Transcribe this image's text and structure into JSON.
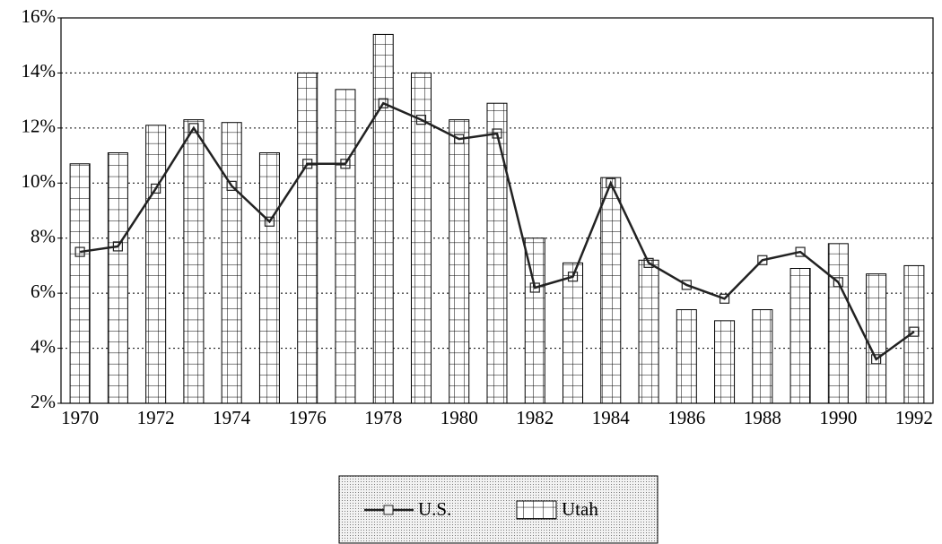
{
  "chart_data": {
    "type": "bar",
    "categories": [
      "1970",
      null,
      "1972",
      null,
      "1974",
      null,
      "1976",
      null,
      "1978",
      null,
      "1980",
      null,
      "1982",
      null,
      "1984",
      null,
      "1986",
      null,
      "1988",
      null,
      "1990",
      null,
      "1992"
    ],
    "series": [
      {
        "name": "U.S.",
        "type": "line",
        "color": "#222222",
        "values": [
          7.5,
          7.7,
          9.8,
          12.0,
          9.9,
          8.6,
          10.7,
          10.7,
          12.9,
          12.3,
          11.6,
          11.8,
          6.2,
          6.6,
          10.0,
          7.1,
          6.3,
          5.8,
          7.2,
          7.5,
          6.4,
          3.6,
          4.6
        ]
      },
      {
        "name": "Utah",
        "type": "bar",
        "color": "#ffffff",
        "values": [
          10.7,
          11.1,
          12.1,
          12.3,
          12.2,
          11.1,
          14.0,
          13.4,
          15.4,
          14.0,
          12.3,
          12.9,
          8.0,
          7.1,
          10.2,
          7.2,
          5.4,
          5.0,
          5.4,
          6.9,
          7.8,
          6.7,
          7.0
        ]
      }
    ],
    "ylim": [
      2,
      16
    ],
    "yticks": [
      {
        "value": 2,
        "label": "2%"
      },
      {
        "value": 4,
        "label": "4%"
      },
      {
        "value": 6,
        "label": "6%"
      },
      {
        "value": 8,
        "label": "8%"
      },
      {
        "value": 10,
        "label": "10%"
      },
      {
        "value": 12,
        "label": "12%"
      },
      {
        "value": 14,
        "label": "14%"
      },
      {
        "value": 16,
        "label": "16%"
      }
    ],
    "grid": true,
    "legend": "bottom"
  }
}
